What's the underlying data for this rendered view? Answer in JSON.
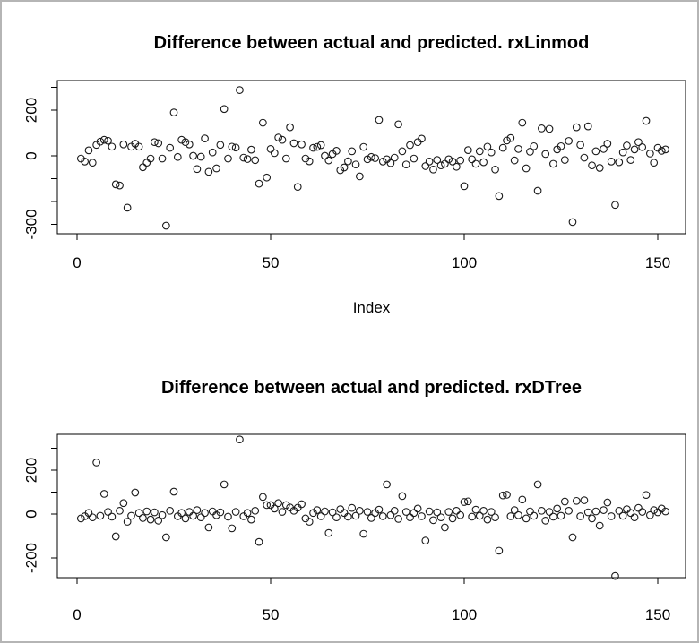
{
  "frame": {
    "background": "#ffffff",
    "border_color": "#b5b5b5"
  },
  "chart_data": [
    {
      "type": "scatter",
      "title": "Difference between actual and predicted. rxLinmod",
      "xlabel": "Index",
      "ylabel": "",
      "marker": "open-circle",
      "marker_color": "#1a1a1a",
      "grid": false,
      "legend": null,
      "x_start_index": 1,
      "xlim": [
        -5,
        158
      ],
      "ylim": [
        -340,
        330
      ],
      "x_ticks": [
        {
          "value": 0,
          "label": "0"
        },
        {
          "value": 50,
          "label": "50"
        },
        {
          "value": 100,
          "label": "100"
        },
        {
          "value": 150,
          "label": "150"
        }
      ],
      "y_ticks": [
        {
          "value": 300,
          "label": ""
        },
        {
          "value": 200,
          "label": "200"
        },
        {
          "value": 100,
          "label": ""
        },
        {
          "value": 0,
          "label": "0"
        },
        {
          "value": -100,
          "label": ""
        },
        {
          "value": -200,
          "label": ""
        },
        {
          "value": -300,
          "label": "-300"
        }
      ],
      "values": [
        -12,
        -25,
        24,
        -30,
        48,
        62,
        70,
        66,
        40,
        -125,
        -130,
        50,
        -227,
        40,
        53,
        40,
        -50,
        -30,
        -12,
        60,
        55,
        -12,
        -306,
        35,
        190,
        -5,
        70,
        60,
        50,
        0,
        -58,
        -4,
        76,
        -70,
        15,
        -55,
        48,
        205,
        -12,
        40,
        36,
        288,
        -8,
        -14,
        27,
        -19,
        -122,
        145,
        -95,
        30,
        12,
        80,
        70,
        -12,
        125,
        55,
        -136,
        50,
        -12,
        -24,
        35,
        39,
        47,
        0,
        -20,
        8,
        22,
        -63,
        -51,
        -24,
        20,
        -38,
        -90,
        39,
        -15,
        -5,
        -10,
        157,
        -25,
        -15,
        -32,
        -8,
        138,
        20,
        -38,
        47,
        -12,
        60,
        75,
        -45,
        -25,
        -60,
        -18,
        -42,
        -35,
        -15,
        -25,
        -48,
        -20,
        -133,
        25,
        -15,
        -35,
        20,
        -28,
        40,
        15,
        -60,
        -176,
        35,
        67,
        78,
        -20,
        30,
        145,
        -55,
        18,
        42,
        -153,
        120,
        8,
        118,
        -35,
        28,
        42,
        -18,
        65,
        -290,
        125,
        48,
        -8,
        129,
        -42,
        20,
        -53,
        30,
        53,
        -25,
        -215,
        -28,
        15,
        45,
        -18,
        28,
        60,
        38,
        153,
        10,
        -30,
        35,
        22,
        28
      ]
    },
    {
      "type": "scatter",
      "title": "Difference between actual and predicted. rxDTree",
      "xlabel": "",
      "ylabel": "",
      "marker": "open-circle",
      "marker_color": "#1a1a1a",
      "grid": false,
      "legend": null,
      "x_start_index": 1,
      "xlim": [
        -5,
        158
      ],
      "ylim": [
        -310,
        368
      ],
      "x_ticks": [
        {
          "value": 0,
          "label": "0"
        },
        {
          "value": 50,
          "label": "50"
        },
        {
          "value": 100,
          "label": "100"
        },
        {
          "value": 150,
          "label": "150"
        }
      ],
      "y_ticks": [
        {
          "value": 300,
          "label": ""
        },
        {
          "value": 200,
          "label": "200"
        },
        {
          "value": 100,
          "label": ""
        },
        {
          "value": 0,
          "label": "0"
        },
        {
          "value": -100,
          "label": ""
        },
        {
          "value": -200,
          "label": "-200"
        }
      ],
      "values": [
        -20,
        -10,
        5,
        -15,
        235,
        -8,
        92,
        10,
        -12,
        -102,
        15,
        50,
        -35,
        -8,
        98,
        5,
        -18,
        12,
        -25,
        8,
        -30,
        -5,
        -106,
        15,
        102,
        -10,
        5,
        -20,
        10,
        -8,
        18,
        -15,
        5,
        -61,
        12,
        -5,
        8,
        135,
        -12,
        -65,
        10,
        340,
        -10,
        5,
        -25,
        15,
        -127,
        78,
        41,
        41,
        25,
        50,
        10,
        41,
        30,
        15,
        29,
        45,
        -20,
        -35,
        5,
        18,
        -10,
        12,
        -86,
        8,
        -15,
        22,
        5,
        -12,
        28,
        -8,
        15,
        -90,
        10,
        -18,
        5,
        20,
        -10,
        135,
        -5,
        15,
        -22,
        82,
        10,
        -15,
        5,
        25,
        -10,
        -121,
        12,
        -28,
        8,
        -15,
        -61,
        10,
        -20,
        15,
        -5,
        55,
        58,
        -12,
        20,
        -8,
        15,
        -25,
        10,
        -15,
        -167,
        85,
        88,
        -10,
        18,
        -5,
        66,
        -20,
        12,
        -8,
        135,
        15,
        -30,
        10,
        -12,
        25,
        -8,
        57,
        15,
        -106,
        60,
        -10,
        63,
        8,
        -20,
        12,
        -53,
        18,
        53,
        -10,
        -282,
        15,
        -8,
        22,
        5,
        -15,
        28,
        10,
        87,
        -5,
        18,
        8,
        25,
        12
      ]
    }
  ]
}
